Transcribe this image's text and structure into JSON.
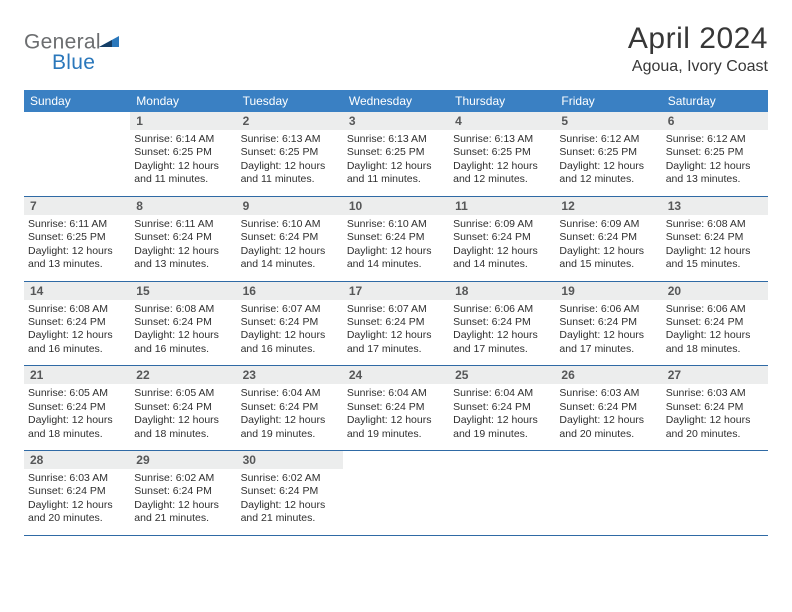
{
  "brand": {
    "part1": "General",
    "part2": "Blue"
  },
  "title": "April 2024",
  "location": "Agoua, Ivory Coast",
  "colors": {
    "header_bg": "#3a80c3",
    "header_text": "#ffffff",
    "daynum_bg": "#eceded",
    "daynum_text": "#565758",
    "rule": "#2f6aa5",
    "body_text": "#2f2f2f",
    "brand_gray": "#6c6e70",
    "brand_blue": "#2a77bb"
  },
  "dow": [
    "Sunday",
    "Monday",
    "Tuesday",
    "Wednesday",
    "Thursday",
    "Friday",
    "Saturday"
  ],
  "weeks": [
    [
      null,
      {
        "n": "1",
        "sr": "6:14 AM",
        "ss": "6:25 PM",
        "dl": "12 hours and 11 minutes."
      },
      {
        "n": "2",
        "sr": "6:13 AM",
        "ss": "6:25 PM",
        "dl": "12 hours and 11 minutes."
      },
      {
        "n": "3",
        "sr": "6:13 AM",
        "ss": "6:25 PM",
        "dl": "12 hours and 11 minutes."
      },
      {
        "n": "4",
        "sr": "6:13 AM",
        "ss": "6:25 PM",
        "dl": "12 hours and 12 minutes."
      },
      {
        "n": "5",
        "sr": "6:12 AM",
        "ss": "6:25 PM",
        "dl": "12 hours and 12 minutes."
      },
      {
        "n": "6",
        "sr": "6:12 AM",
        "ss": "6:25 PM",
        "dl": "12 hours and 13 minutes."
      }
    ],
    [
      {
        "n": "7",
        "sr": "6:11 AM",
        "ss": "6:25 PM",
        "dl": "12 hours and 13 minutes."
      },
      {
        "n": "8",
        "sr": "6:11 AM",
        "ss": "6:24 PM",
        "dl": "12 hours and 13 minutes."
      },
      {
        "n": "9",
        "sr": "6:10 AM",
        "ss": "6:24 PM",
        "dl": "12 hours and 14 minutes."
      },
      {
        "n": "10",
        "sr": "6:10 AM",
        "ss": "6:24 PM",
        "dl": "12 hours and 14 minutes."
      },
      {
        "n": "11",
        "sr": "6:09 AM",
        "ss": "6:24 PM",
        "dl": "12 hours and 14 minutes."
      },
      {
        "n": "12",
        "sr": "6:09 AM",
        "ss": "6:24 PM",
        "dl": "12 hours and 15 minutes."
      },
      {
        "n": "13",
        "sr": "6:08 AM",
        "ss": "6:24 PM",
        "dl": "12 hours and 15 minutes."
      }
    ],
    [
      {
        "n": "14",
        "sr": "6:08 AM",
        "ss": "6:24 PM",
        "dl": "12 hours and 16 minutes."
      },
      {
        "n": "15",
        "sr": "6:08 AM",
        "ss": "6:24 PM",
        "dl": "12 hours and 16 minutes."
      },
      {
        "n": "16",
        "sr": "6:07 AM",
        "ss": "6:24 PM",
        "dl": "12 hours and 16 minutes."
      },
      {
        "n": "17",
        "sr": "6:07 AM",
        "ss": "6:24 PM",
        "dl": "12 hours and 17 minutes."
      },
      {
        "n": "18",
        "sr": "6:06 AM",
        "ss": "6:24 PM",
        "dl": "12 hours and 17 minutes."
      },
      {
        "n": "19",
        "sr": "6:06 AM",
        "ss": "6:24 PM",
        "dl": "12 hours and 17 minutes."
      },
      {
        "n": "20",
        "sr": "6:06 AM",
        "ss": "6:24 PM",
        "dl": "12 hours and 18 minutes."
      }
    ],
    [
      {
        "n": "21",
        "sr": "6:05 AM",
        "ss": "6:24 PM",
        "dl": "12 hours and 18 minutes."
      },
      {
        "n": "22",
        "sr": "6:05 AM",
        "ss": "6:24 PM",
        "dl": "12 hours and 18 minutes."
      },
      {
        "n": "23",
        "sr": "6:04 AM",
        "ss": "6:24 PM",
        "dl": "12 hours and 19 minutes."
      },
      {
        "n": "24",
        "sr": "6:04 AM",
        "ss": "6:24 PM",
        "dl": "12 hours and 19 minutes."
      },
      {
        "n": "25",
        "sr": "6:04 AM",
        "ss": "6:24 PM",
        "dl": "12 hours and 19 minutes."
      },
      {
        "n": "26",
        "sr": "6:03 AM",
        "ss": "6:24 PM",
        "dl": "12 hours and 20 minutes."
      },
      {
        "n": "27",
        "sr": "6:03 AM",
        "ss": "6:24 PM",
        "dl": "12 hours and 20 minutes."
      }
    ],
    [
      {
        "n": "28",
        "sr": "6:03 AM",
        "ss": "6:24 PM",
        "dl": "12 hours and 20 minutes."
      },
      {
        "n": "29",
        "sr": "6:02 AM",
        "ss": "6:24 PM",
        "dl": "12 hours and 21 minutes."
      },
      {
        "n": "30",
        "sr": "6:02 AM",
        "ss": "6:24 PM",
        "dl": "12 hours and 21 minutes."
      },
      null,
      null,
      null,
      null
    ]
  ],
  "labels": {
    "sunrise": "Sunrise: ",
    "sunset": "Sunset: ",
    "daylight": "Daylight: "
  }
}
